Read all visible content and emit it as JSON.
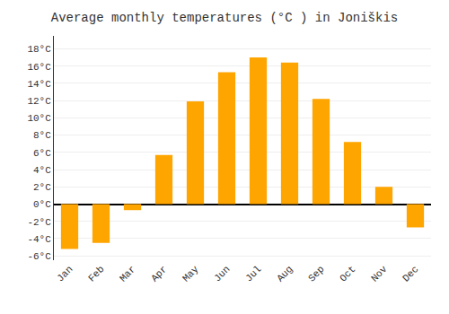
{
  "chart_data": {
    "type": "bar",
    "title": "Average monthly temperatures (°C ) in Joniškis",
    "categories": [
      "Jan",
      "Feb",
      "Mar",
      "Apr",
      "May",
      "Jun",
      "Jul",
      "Aug",
      "Sep",
      "Oct",
      "Nov",
      "Dec"
    ],
    "values": [
      -5.2,
      -4.5,
      -0.7,
      5.7,
      11.9,
      15.3,
      17.0,
      16.4,
      12.2,
      7.2,
      2.0,
      -2.7
    ],
    "color": "#FFA500",
    "ylim": [
      -6.5,
      19.5
    ],
    "yticks": [
      {
        "value": -6,
        "label": "-6°C"
      },
      {
        "value": -4,
        "label": "-4°C"
      },
      {
        "value": -2,
        "label": "-2°C"
      },
      {
        "value": 0,
        "label": "0°C"
      },
      {
        "value": 2,
        "label": "2°C"
      },
      {
        "value": 4,
        "label": "4°C"
      },
      {
        "value": 6,
        "label": "6°C"
      },
      {
        "value": 8,
        "label": "8°C"
      },
      {
        "value": 10,
        "label": "10°C"
      },
      {
        "value": 12,
        "label": "12°C"
      },
      {
        "value": 14,
        "label": "14°C"
      },
      {
        "value": 16,
        "label": "16°C"
      },
      {
        "value": 18,
        "label": "18°C"
      }
    ],
    "grid": true
  }
}
